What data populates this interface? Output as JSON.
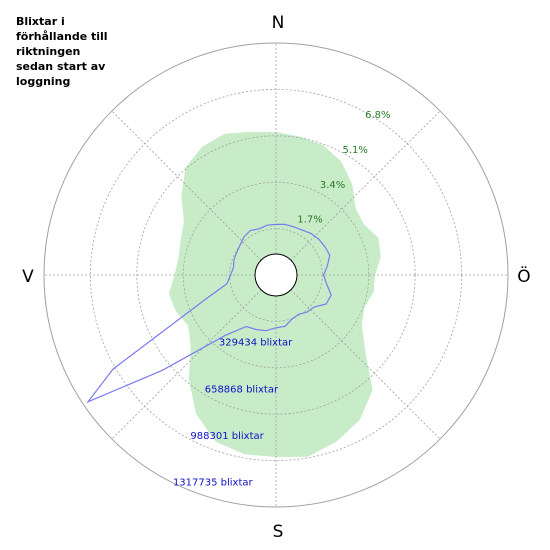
{
  "chart_data": {
    "type": "polar-area",
    "title": "Blixtar i\nförhållande till\nriktningen\nsedan start av\nloggning",
    "directions": {
      "n": "N",
      "e": "Ö",
      "s": "S",
      "w": "V"
    },
    "percent_ring_labels": [
      "1.7%",
      "3.4%",
      "5.1%",
      "6.8%"
    ],
    "percent_ring_values": [
      1.7,
      3.4,
      5.1,
      6.8
    ],
    "count_ring_labels": [
      "329434 blixtar",
      "658868 blixtar",
      "988301 blixtar",
      "1317735 blixtar"
    ],
    "count_ring_values": [
      329434,
      658868,
      988301,
      1317735
    ],
    "series": [
      {
        "kind": "percent-area",
        "color": "#c8ecc8",
        "unit": "%",
        "direction_deg": [
          0,
          10,
          20,
          30,
          40,
          50,
          60,
          70,
          80,
          90,
          100,
          110,
          120,
          130,
          140,
          150,
          160,
          170,
          180,
          190,
          200,
          210,
          220,
          230,
          240,
          250,
          260,
          270,
          280,
          290,
          300,
          310,
          320,
          330,
          340,
          350
        ],
        "values": [
          5.0,
          4.9,
          4.8,
          4.5,
          4.0,
          3.4,
          3.3,
          3.6,
          3.5,
          3.2,
          3.2,
          3.0,
          3.2,
          3.9,
          5.3,
          6.0,
          6.4,
          6.7,
          6.6,
          6.6,
          6.4,
          5.7,
          4.7,
          3.7,
          3.3,
          3.5,
          3.6,
          3.3,
          3.2,
          3.3,
          3.5,
          4.2,
          4.9,
          5.2,
          5.3,
          5.1
        ]
      },
      {
        "kind": "count-line",
        "color": "#7b7bef",
        "unit": "blixtar",
        "direction_deg": [
          0,
          10,
          20,
          30,
          40,
          50,
          60,
          70,
          80,
          90,
          100,
          110,
          120,
          130,
          140,
          150,
          160,
          170,
          180,
          190,
          200,
          210,
          220,
          230,
          236,
          240,
          250,
          260,
          270,
          280,
          290,
          300,
          310,
          320,
          330,
          340,
          350
        ],
        "values": [
          200000,
          205000,
          205000,
          210000,
          225000,
          235000,
          240000,
          245000,
          210000,
          180000,
          205000,
          255000,
          250000,
          195000,
          185000,
          165000,
          175000,
          210000,
          215000,
          240000,
          250000,
          260000,
          390000,
          860000,
          1390000,
          1130000,
          390000,
          195000,
          165000,
          150000,
          160000,
          165000,
          175000,
          195000,
          205000,
          190000,
          200000
        ]
      }
    ],
    "grid": true
  }
}
